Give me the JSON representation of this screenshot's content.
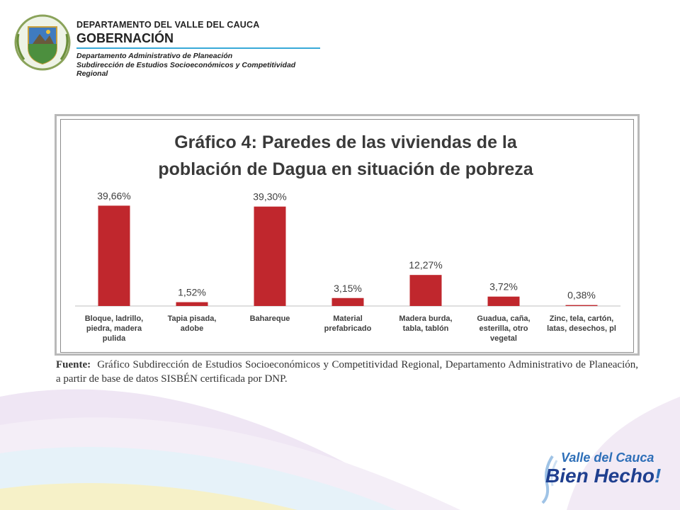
{
  "header": {
    "department": "DEPARTAMENTO DEL VALLE DEL CAUCA",
    "gobernacion": "GOBERNACIÓN",
    "subtitle1": "Departamento  Administrativo de Planeación",
    "subtitle2": "Subdirección de Estudios Socioeconómicos y Competitividad Regional"
  },
  "chart_data": {
    "type": "bar",
    "title_line1": "Gráfico 4: Paredes de las viviendas de la",
    "title_line2": "población de Dagua en situación de pobreza",
    "categories": [
      [
        "Bloque, ladrillo,",
        "piedra, madera",
        "pulida"
      ],
      [
        "Tapia pisada,",
        "adobe"
      ],
      [
        "Bahareque"
      ],
      [
        "Material",
        "prefabricado"
      ],
      [
        "Madera burda,",
        "tabla, tablón"
      ],
      [
        "Guadua, caña,",
        "esterilla, otro",
        "vegetal"
      ],
      [
        "Zinc, tela, cartón,",
        "latas, desechos, pl"
      ]
    ],
    "values": [
      39.66,
      1.52,
      39.3,
      3.15,
      12.27,
      3.72,
      0.38
    ],
    "labels": [
      "39,66%",
      "1,52%",
      "39,30%",
      "3,15%",
      "12,27%",
      "3,72%",
      "0,38%"
    ],
    "ylim": [
      0,
      42
    ],
    "bar_color": "#c0272d",
    "grid": false,
    "legend": "none"
  },
  "source": {
    "prefix": "Fuente:",
    "text": "Gráfico Subdirección de Estudios Socioeconómicos y Competitividad Regional, Departamento Administrativo de Planeación, a partir de base de datos SISBÉN certificada por DNP."
  },
  "logo": {
    "line1": "Valle del Cauca",
    "line2": "Bien Hecho",
    "exclamation": "!"
  },
  "colors": {
    "accent_blue": "#38a9d8",
    "swoosh_purple": "#e9dff0",
    "swoosh_blue": "#d8ecf7"
  }
}
